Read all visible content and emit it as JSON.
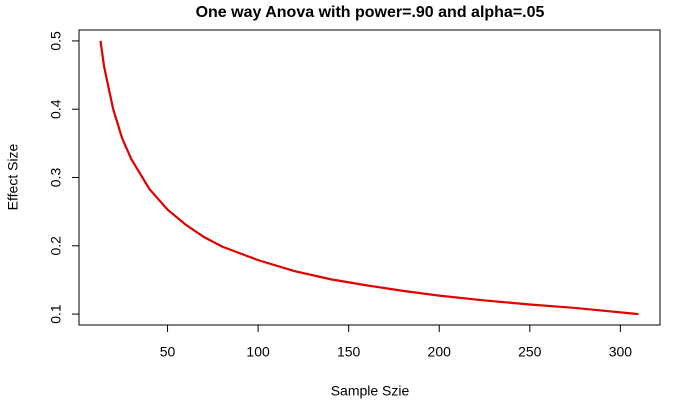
{
  "chart_data": {
    "type": "line",
    "title": "One way Anova with power=.90 and alpha=.05",
    "x_label": "Sample Szie",
    "y_label": "Effect Size",
    "x": [
      13,
      15,
      20,
      25,
      30,
      40,
      50,
      60,
      70,
      80,
      100,
      120,
      140,
      160,
      180,
      200,
      225,
      250,
      275,
      310
    ],
    "series": [
      {
        "color": "#e00000",
        "values": [
          0.5,
          0.462,
          0.4,
          0.357,
          0.327,
          0.283,
          0.253,
          0.231,
          0.213,
          0.199,
          0.179,
          0.163,
          0.151,
          0.142,
          0.134,
          0.127,
          0.12,
          0.114,
          0.109,
          0.1
        ]
      }
    ],
    "xlim": [
      1.12,
      321.88
    ],
    "ylim": [
      0.084,
      0.516
    ],
    "xticks": [
      50,
      100,
      150,
      200,
      250,
      300
    ],
    "yticks": [
      0.1,
      0.2,
      0.3,
      0.4,
      0.5
    ]
  }
}
